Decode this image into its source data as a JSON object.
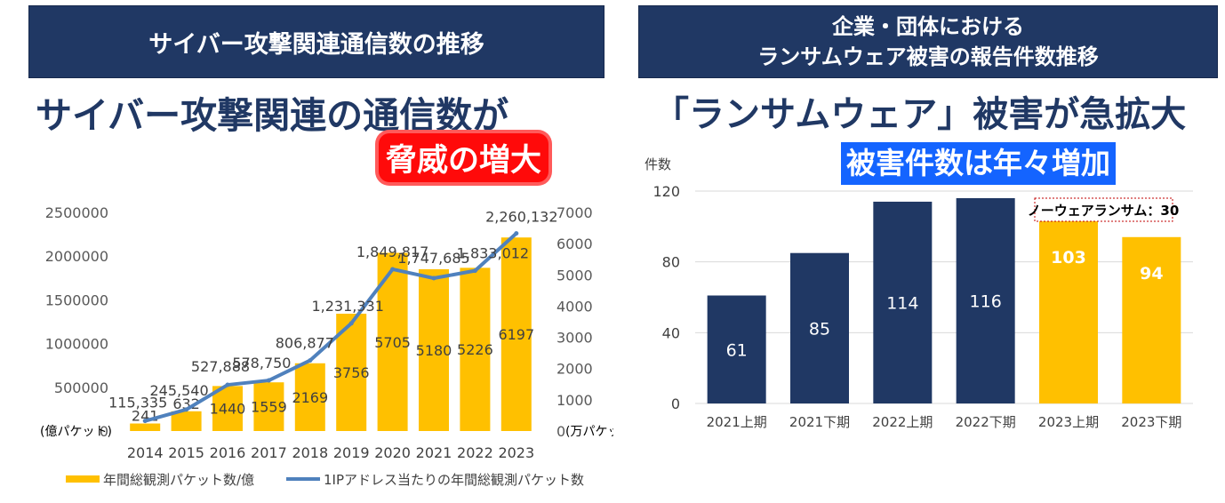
{
  "left": {
    "banner": "サイバー攻撃関連通信数の推移",
    "headline": "サイバー攻撃関連の通信数が",
    "tag": "脅威の増大",
    "left_axis_unit": "(億パケット)",
    "right_axis_unit": "(万パケット)",
    "left_ticks": [
      "0",
      "500000",
      "1000000",
      "1500000",
      "2000000",
      "2500000"
    ],
    "right_ticks": [
      "0",
      "1000",
      "2000",
      "3000",
      "4000",
      "5000",
      "6000",
      "7000"
    ],
    "legend_bar": "年間総観測パケット数/億",
    "legend_line": "1IPアドレス当たりの年間総観測パケット数"
  },
  "right": {
    "banner_line1": "企業・団体における",
    "banner_line2": "ランサムウェア被害の報告件数推移",
    "headline": "「ランサムウェア」被害が急拡大",
    "tag": "被害件数は年々増加",
    "yaxis_title": "件数",
    "y_ticks": [
      "0",
      "40",
      "80",
      "120"
    ],
    "callout": "ノーウェアランサム：30"
  },
  "chart_data": [
    {
      "type": "bar+line",
      "categories": [
        "2014",
        "2015",
        "2016",
        "2017",
        "2018",
        "2019",
        "2020",
        "2021",
        "2022",
        "2023"
      ],
      "series": [
        {
          "name": "年間総観測パケット数/億",
          "kind": "bar",
          "axis": "right",
          "values": [
            241,
            632,
            1440,
            1559,
            2169,
            3756,
            5705,
            5180,
            5226,
            6197
          ],
          "labels": [
            "241",
            "632",
            "1440",
            "1559",
            "2169",
            "3756",
            "5705",
            "5180",
            "5226",
            "6197"
          ],
          "color": "#ffc000"
        },
        {
          "name": "1IPアドレス当たりの年間総観測パケット数",
          "kind": "line",
          "axis": "left",
          "values": [
            115335,
            245540,
            527888,
            578750,
            806877,
            1231331,
            1849817,
            1747685,
            1833012,
            2260132
          ],
          "labels": [
            "115,335",
            "245,540",
            "527,888",
            "578,750",
            "806,877",
            "1,231,331",
            "1,849,817",
            "1,747,685",
            "1,833,012",
            "2,260,132"
          ],
          "color": "#4f81bd"
        }
      ],
      "ylim_left": [
        0,
        2500000
      ],
      "ylim_right": [
        0,
        7000
      ]
    },
    {
      "type": "bar",
      "categories": [
        "2021上期",
        "2021下期",
        "2022上期",
        "2022下期",
        "2023上期",
        "2023下期"
      ],
      "values": [
        61,
        85,
        114,
        116,
        103,
        94
      ],
      "labels": [
        "61",
        "85",
        "114",
        "116",
        "103",
        "94"
      ],
      "colors": [
        "#203864",
        "#203864",
        "#203864",
        "#203864",
        "#ffc000",
        "#ffc000"
      ],
      "ylabel": "件数",
      "ylim": [
        0,
        120
      ],
      "grid": true
    }
  ]
}
